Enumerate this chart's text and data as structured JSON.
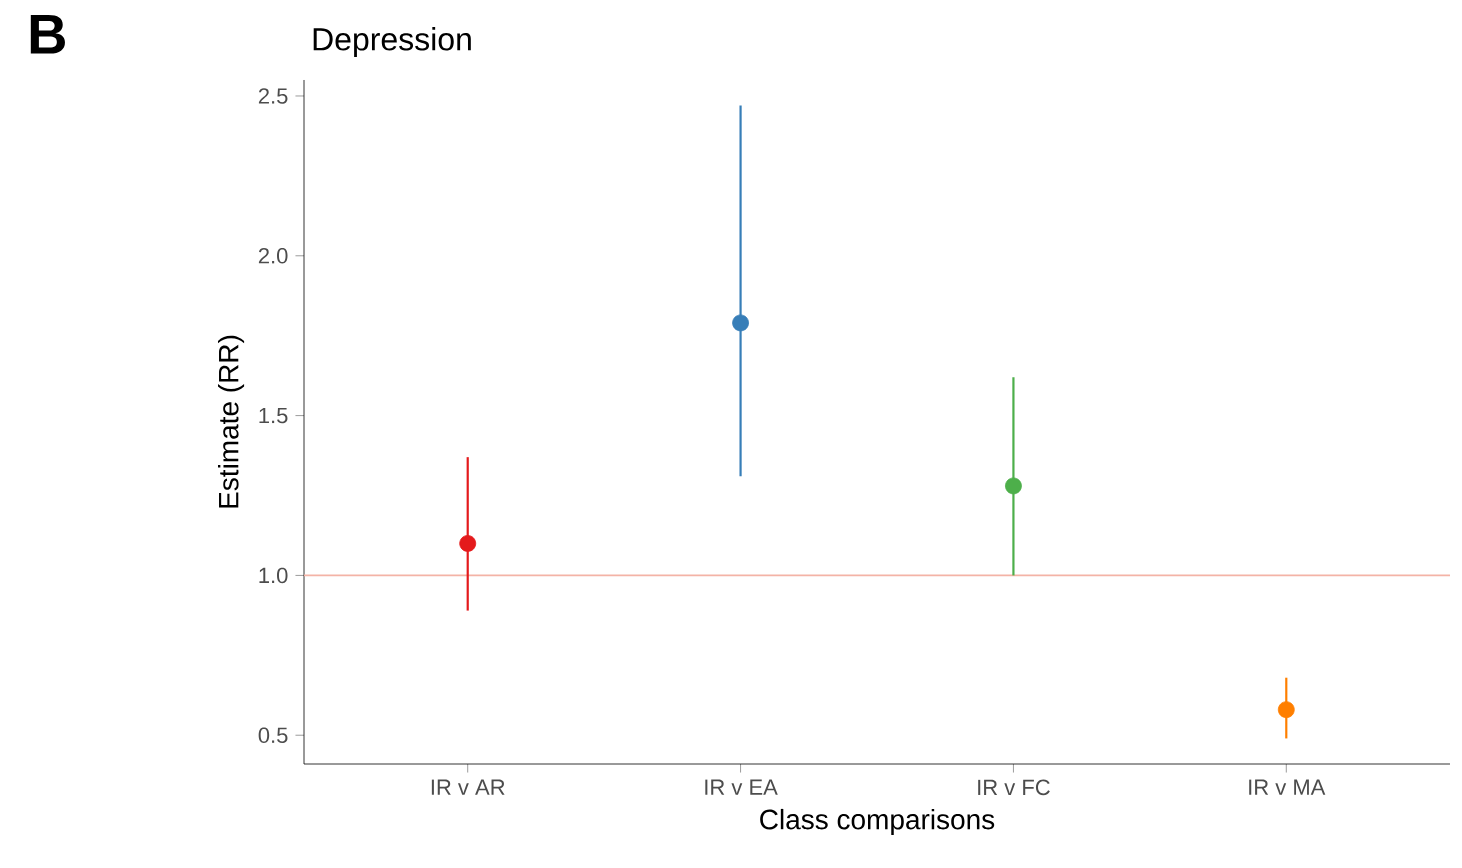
{
  "chart_data": {
    "type": "scatter",
    "title": "Depression",
    "xlabel": "Class comparisons",
    "ylabel": "Estimate (RR)",
    "categories": [
      "IR v AR",
      "IR v EA",
      "IR v FC",
      "IR v MA"
    ],
    "values": [
      1.1,
      1.79,
      1.28,
      0.58
    ],
    "colors": [
      "#e41a1c",
      "#377eb8",
      "#4daf4a",
      "#ff7f00"
    ],
    "errors": [
      [
        0.89,
        1.37
      ],
      [
        1.31,
        2.47
      ],
      [
        1.0,
        1.62
      ],
      [
        0.49,
        0.68
      ]
    ],
    "ylim": [
      0.41,
      2.55
    ],
    "yticks": [
      {
        "value": 0.5,
        "label": "0.5"
      },
      {
        "value": 1.0,
        "label": "1.0"
      },
      {
        "value": 1.5,
        "label": "1.5"
      },
      {
        "value": 2.0,
        "label": "2.0"
      },
      {
        "value": 2.5,
        "label": "2.5"
      }
    ],
    "ref_lines": [
      {
        "axis": "y",
        "value": 1.0,
        "color": "#f4b3a6"
      }
    ],
    "marker": "circle",
    "grid": false,
    "annotations": [
      "B"
    ]
  }
}
